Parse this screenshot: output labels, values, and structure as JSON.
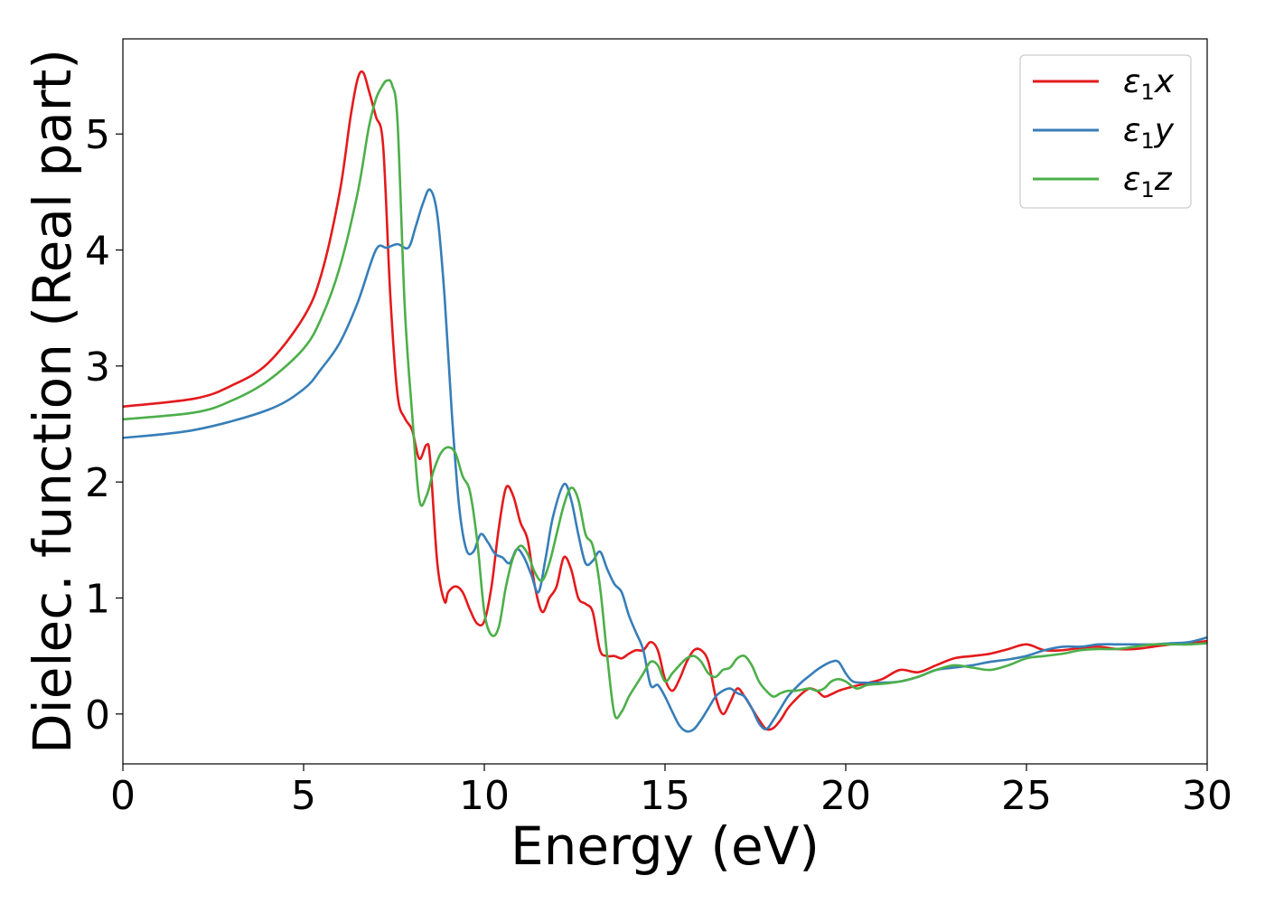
{
  "chart_data": {
    "type": "line",
    "title": "",
    "xlabel": "Energy (eV)",
    "ylabel": "Dielec. function (Real part)",
    "xlim": [
      0,
      30
    ],
    "ylim": [
      -0.43,
      5.82
    ],
    "xticks": [
      0,
      5,
      10,
      15,
      20,
      25,
      30
    ],
    "yticks": [
      0,
      1,
      2,
      3,
      4,
      5
    ],
    "grid": false,
    "legend_position": "top-right",
    "series": [
      {
        "name": "ε₁x",
        "legend_main": "ε",
        "legend_sub": "1",
        "legend_suffix": "x",
        "color": "#e41a1c",
        "x": [
          0,
          2,
          3,
          4,
          5,
          5.5,
          6,
          6.3,
          6.5,
          6.65,
          6.8,
          7.0,
          7.2,
          7.4,
          7.6,
          7.8,
          8.0,
          8.2,
          8.4,
          8.5,
          8.7,
          8.9,
          9.0,
          9.2,
          9.4,
          9.6,
          9.8,
          10.0,
          10.2,
          10.4,
          10.6,
          10.8,
          11.0,
          11.2,
          11.4,
          11.6,
          11.8,
          12.0,
          12.2,
          12.4,
          12.6,
          12.8,
          13.0,
          13.2,
          13.4,
          13.6,
          13.8,
          14.0,
          14.2,
          14.4,
          14.6,
          14.8,
          15.0,
          15.2,
          15.4,
          15.6,
          15.8,
          16.0,
          16.2,
          16.4,
          16.6,
          16.8,
          17.0,
          17.2,
          17.4,
          17.6,
          17.8,
          18.0,
          18.2,
          18.4,
          18.6,
          18.8,
          19.0,
          19.2,
          19.4,
          19.6,
          19.8,
          20.0,
          20.5,
          21.0,
          21.5,
          22.0,
          22.5,
          23.0,
          23.5,
          24.0,
          24.5,
          25.0,
          25.5,
          26.0,
          26.5,
          27.0,
          27.5,
          28.0,
          28.5,
          29.0,
          29.5,
          30.0
        ],
        "values": [
          2.65,
          2.72,
          2.83,
          3.02,
          3.42,
          3.8,
          4.5,
          5.15,
          5.48,
          5.53,
          5.38,
          5.15,
          4.9,
          3.6,
          2.75,
          2.55,
          2.45,
          2.2,
          2.32,
          2.2,
          1.3,
          0.97,
          1.05,
          1.1,
          1.05,
          0.9,
          0.78,
          0.8,
          1.1,
          1.6,
          1.95,
          1.88,
          1.65,
          1.5,
          1.1,
          0.88,
          1.0,
          1.1,
          1.35,
          1.25,
          1.0,
          0.95,
          0.88,
          0.55,
          0.5,
          0.5,
          0.48,
          0.52,
          0.55,
          0.55,
          0.62,
          0.55,
          0.3,
          0.2,
          0.3,
          0.45,
          0.55,
          0.55,
          0.45,
          0.15,
          0.0,
          0.1,
          0.22,
          0.15,
          0.05,
          -0.05,
          -0.13,
          -0.12,
          -0.05,
          0.05,
          0.12,
          0.18,
          0.22,
          0.2,
          0.15,
          0.17,
          0.2,
          0.22,
          0.26,
          0.3,
          0.38,
          0.36,
          0.42,
          0.48,
          0.5,
          0.52,
          0.56,
          0.6,
          0.55,
          0.55,
          0.57,
          0.58,
          0.56,
          0.56,
          0.58,
          0.6,
          0.61,
          0.63
        ]
      },
      {
        "name": "ε₁y",
        "legend_main": "ε",
        "legend_sub": "1",
        "legend_suffix": "y",
        "color": "#377eb8",
        "x": [
          0,
          2,
          4,
          5,
          5.5,
          6,
          6.5,
          7.0,
          7.3,
          7.6,
          7.9,
          8.1,
          8.3,
          8.5,
          8.7,
          8.9,
          9.1,
          9.3,
          9.5,
          9.7,
          9.9,
          10.1,
          10.3,
          10.5,
          10.7,
          10.9,
          11.1,
          11.3,
          11.5,
          11.7,
          11.9,
          12.2,
          12.4,
          12.6,
          12.8,
          13.0,
          13.2,
          13.4,
          13.6,
          13.8,
          14.0,
          14.2,
          14.4,
          14.6,
          14.8,
          15.0,
          15.2,
          15.4,
          15.6,
          15.8,
          16.0,
          16.2,
          16.4,
          16.6,
          16.8,
          17.0,
          17.2,
          17.4,
          17.6,
          17.8,
          18.0,
          18.2,
          18.4,
          18.6,
          18.8,
          19.0,
          19.2,
          19.4,
          19.6,
          19.8,
          20.0,
          20.2,
          20.5,
          21.0,
          21.5,
          22.0,
          22.5,
          23.0,
          23.5,
          24.0,
          24.5,
          25.0,
          25.5,
          26.0,
          26.5,
          27.0,
          27.5,
          28.0,
          28.5,
          29.0,
          29.5,
          30.0
        ],
        "values": [
          2.38,
          2.45,
          2.62,
          2.8,
          2.98,
          3.2,
          3.55,
          4.0,
          4.02,
          4.05,
          4.02,
          4.2,
          4.4,
          4.52,
          4.3,
          3.6,
          2.6,
          1.8,
          1.42,
          1.4,
          1.55,
          1.48,
          1.38,
          1.35,
          1.3,
          1.42,
          1.35,
          1.2,
          1.05,
          1.35,
          1.7,
          1.98,
          1.85,
          1.55,
          1.3,
          1.32,
          1.4,
          1.25,
          1.12,
          1.05,
          0.85,
          0.7,
          0.55,
          0.25,
          0.25,
          0.15,
          0.02,
          -0.1,
          -0.15,
          -0.13,
          -0.05,
          0.05,
          0.15,
          0.2,
          0.22,
          0.18,
          0.15,
          0.05,
          -0.08,
          -0.13,
          -0.05,
          0.05,
          0.15,
          0.22,
          0.28,
          0.33,
          0.38,
          0.42,
          0.45,
          0.45,
          0.35,
          0.28,
          0.27,
          0.27,
          0.28,
          0.32,
          0.38,
          0.4,
          0.42,
          0.45,
          0.47,
          0.5,
          0.55,
          0.58,
          0.58,
          0.6,
          0.6,
          0.6,
          0.6,
          0.61,
          0.62,
          0.66
        ]
      },
      {
        "name": "ε₁z",
        "legend_main": "ε",
        "legend_sub": "1",
        "legend_suffix": "z",
        "color": "#4daf4a",
        "x": [
          0,
          2,
          3,
          4,
          5,
          5.5,
          6,
          6.5,
          6.8,
          7.0,
          7.15,
          7.3,
          7.45,
          7.6,
          7.8,
          8.0,
          8.2,
          8.4,
          8.6,
          8.8,
          9.0,
          9.2,
          9.4,
          9.6,
          9.8,
          10.0,
          10.2,
          10.4,
          10.6,
          10.8,
          11.0,
          11.2,
          11.4,
          11.6,
          11.8,
          12.0,
          12.2,
          12.4,
          12.6,
          12.8,
          13.0,
          13.2,
          13.4,
          13.6,
          13.8,
          14.0,
          14.2,
          14.4,
          14.6,
          14.8,
          15.0,
          15.2,
          15.4,
          15.6,
          15.8,
          16.0,
          16.2,
          16.4,
          16.6,
          16.8,
          17.0,
          17.2,
          17.4,
          17.6,
          17.8,
          18.0,
          18.2,
          18.4,
          18.6,
          18.8,
          19.0,
          19.2,
          19.4,
          19.6,
          19.8,
          20.0,
          20.3,
          20.6,
          21.0,
          21.5,
          22.0,
          22.5,
          23.0,
          23.5,
          24.0,
          24.5,
          25.0,
          25.5,
          26.0,
          26.5,
          27.0,
          27.5,
          28.0,
          28.5,
          29.0,
          29.5,
          30.0
        ],
        "values": [
          2.54,
          2.6,
          2.7,
          2.87,
          3.15,
          3.42,
          3.85,
          4.5,
          5.05,
          5.3,
          5.4,
          5.46,
          5.42,
          5.1,
          3.5,
          2.6,
          1.85,
          1.88,
          2.1,
          2.25,
          2.3,
          2.25,
          2.05,
          1.92,
          1.5,
          0.88,
          0.68,
          0.75,
          1.1,
          1.35,
          1.45,
          1.38,
          1.22,
          1.15,
          1.3,
          1.55,
          1.8,
          1.95,
          1.85,
          1.55,
          1.45,
          1.1,
          0.5,
          0.0,
          0.02,
          0.15,
          0.25,
          0.35,
          0.45,
          0.42,
          0.28,
          0.35,
          0.42,
          0.48,
          0.5,
          0.45,
          0.35,
          0.32,
          0.38,
          0.4,
          0.48,
          0.5,
          0.42,
          0.28,
          0.2,
          0.15,
          0.18,
          0.2,
          0.2,
          0.21,
          0.22,
          0.2,
          0.22,
          0.28,
          0.3,
          0.28,
          0.22,
          0.25,
          0.26,
          0.28,
          0.32,
          0.38,
          0.42,
          0.4,
          0.38,
          0.42,
          0.48,
          0.5,
          0.52,
          0.55,
          0.56,
          0.56,
          0.58,
          0.6,
          0.6,
          0.6,
          0.61
        ]
      }
    ]
  }
}
